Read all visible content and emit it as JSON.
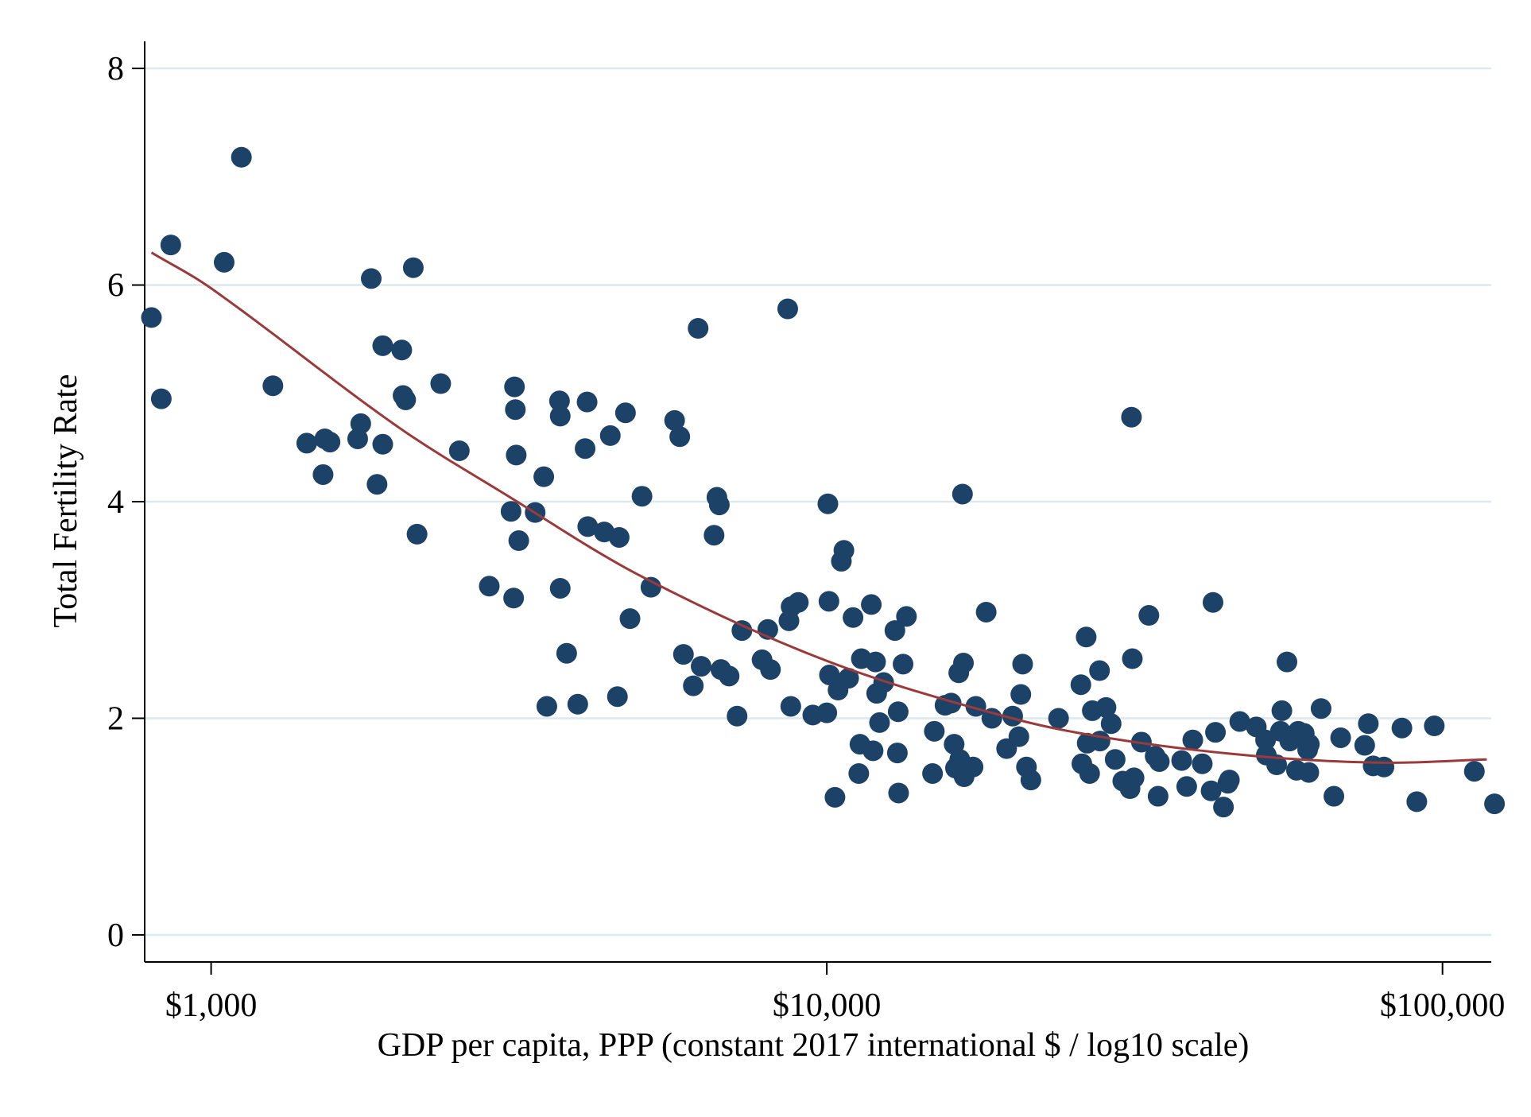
{
  "chart_data": {
    "type": "scatter",
    "xlabel": "GDP per capita, PPP (constant 2017 international $ / log10 scale)",
    "ylabel": "Total Fertility Rate",
    "x_scale": "log10",
    "xlim": [
      780,
      120000
    ],
    "ylim": [
      -0.25,
      8.25
    ],
    "x_ticks": [
      {
        "value": 1000,
        "label": "$1,000"
      },
      {
        "value": 10000,
        "label": "$10,000"
      },
      {
        "value": 100000,
        "label": "$100,000"
      }
    ],
    "y_ticks": [
      {
        "value": 0,
        "label": "0"
      },
      {
        "value": 2,
        "label": "2"
      },
      {
        "value": 4,
        "label": "4"
      },
      {
        "value": 6,
        "label": "6"
      },
      {
        "value": 8,
        "label": "8"
      }
    ],
    "grid": "horizontal",
    "colors": {
      "points": "#1d4268",
      "fit_line": "#9b3a3a",
      "grid": "#dce9ee",
      "axis": "#000000"
    },
    "series": [
      {
        "type": "scatter",
        "points": [
          [
            800,
            5.7
          ],
          [
            830,
            4.95
          ],
          [
            860,
            6.37
          ],
          [
            1050,
            6.21
          ],
          [
            1120,
            7.18
          ],
          [
            1260,
            5.07
          ],
          [
            1430,
            4.54
          ],
          [
            1530,
            4.58
          ],
          [
            1520,
            4.25
          ],
          [
            1560,
            4.55
          ],
          [
            1730,
            4.58
          ],
          [
            1750,
            4.72
          ],
          [
            1820,
            6.06
          ],
          [
            1860,
            4.16
          ],
          [
            1900,
            5.44
          ],
          [
            1900,
            4.53
          ],
          [
            2040,
            5.4
          ],
          [
            2050,
            4.98
          ],
          [
            2070,
            4.94
          ],
          [
            2130,
            6.16
          ],
          [
            2160,
            3.7
          ],
          [
            2360,
            5.09
          ],
          [
            2530,
            4.47
          ],
          [
            2830,
            3.22
          ],
          [
            3070,
            3.91
          ],
          [
            3100,
            3.11
          ],
          [
            3110,
            5.06
          ],
          [
            3120,
            4.85
          ],
          [
            3130,
            4.43
          ],
          [
            3160,
            3.64
          ],
          [
            3360,
            3.9
          ],
          [
            3470,
            4.23
          ],
          [
            3510,
            2.11
          ],
          [
            3680,
            4.93
          ],
          [
            3690,
            4.79
          ],
          [
            3690,
            3.2
          ],
          [
            3780,
            2.6
          ],
          [
            3940,
            2.13
          ],
          [
            4050,
            4.49
          ],
          [
            4080,
            4.92
          ],
          [
            4090,
            3.77
          ],
          [
            4350,
            3.72
          ],
          [
            4450,
            4.61
          ],
          [
            4600,
            3.67
          ],
          [
            4570,
            2.2
          ],
          [
            4710,
            4.82
          ],
          [
            4790,
            2.92
          ],
          [
            5010,
            4.05
          ],
          [
            5180,
            3.21
          ],
          [
            5660,
            4.75
          ],
          [
            5770,
            4.6
          ],
          [
            5850,
            2.59
          ],
          [
            6070,
            2.3
          ],
          [
            6180,
            5.6
          ],
          [
            6250,
            2.48
          ],
          [
            6560,
            3.69
          ],
          [
            6630,
            4.04
          ],
          [
            6690,
            3.97
          ],
          [
            6730,
            2.45
          ],
          [
            6940,
            2.39
          ],
          [
            7150,
            2.02
          ],
          [
            7280,
            2.81
          ],
          [
            7850,
            2.54
          ],
          [
            8020,
            2.82
          ],
          [
            8100,
            2.45
          ],
          [
            8640,
            5.78
          ],
          [
            8680,
            2.9
          ],
          [
            8750,
            3.03
          ],
          [
            8740,
            2.11
          ],
          [
            8990,
            3.07
          ],
          [
            9490,
            2.03
          ],
          [
            10000,
            2.05
          ],
          [
            10040,
            3.98
          ],
          [
            10080,
            3.08
          ],
          [
            10100,
            2.4
          ],
          [
            10310,
            1.27
          ],
          [
            10430,
            2.26
          ],
          [
            10560,
            3.45
          ],
          [
            10660,
            3.55
          ],
          [
            10850,
            2.37
          ],
          [
            11030,
            2.93
          ],
          [
            11270,
            1.49
          ],
          [
            11320,
            1.76
          ],
          [
            11380,
            2.55
          ],
          [
            11810,
            3.05
          ],
          [
            11890,
            1.7
          ],
          [
            12000,
            2.52
          ],
          [
            12050,
            2.23
          ],
          [
            12180,
            1.96
          ],
          [
            12370,
            2.33
          ],
          [
            12900,
            2.81
          ],
          [
            13020,
            1.68
          ],
          [
            13060,
            2.06
          ],
          [
            13080,
            1.31
          ],
          [
            13300,
            2.5
          ],
          [
            13470,
            2.94
          ],
          [
            14850,
            1.49
          ],
          [
            14950,
            1.88
          ],
          [
            15560,
            2.12
          ],
          [
            15920,
            2.14
          ],
          [
            16100,
            1.76
          ],
          [
            16180,
            1.54
          ],
          [
            16380,
            2.42
          ],
          [
            16440,
            1.62
          ],
          [
            16670,
            2.51
          ],
          [
            16610,
            4.07
          ],
          [
            16710,
            1.46
          ],
          [
            17280,
            1.55
          ],
          [
            17460,
            2.11
          ],
          [
            18150,
            2.98
          ],
          [
            18540,
            2.0
          ],
          [
            19590,
            1.72
          ],
          [
            20040,
            2.02
          ],
          [
            20510,
            1.83
          ],
          [
            20660,
            2.22
          ],
          [
            20800,
            2.5
          ],
          [
            21100,
            1.55
          ],
          [
            21450,
            1.43
          ],
          [
            23790,
            2.0
          ],
          [
            25860,
            2.31
          ],
          [
            25960,
            1.58
          ],
          [
            26380,
            2.75
          ],
          [
            26480,
            1.77
          ],
          [
            26720,
            1.49
          ],
          [
            26990,
            2.07
          ],
          [
            27730,
            2.44
          ],
          [
            27780,
            1.79
          ],
          [
            28410,
            2.1
          ],
          [
            28960,
            1.95
          ],
          [
            29400,
            1.62
          ],
          [
            30250,
            1.42
          ],
          [
            31080,
            1.35
          ],
          [
            31250,
            4.78
          ],
          [
            31350,
            2.55
          ],
          [
            31550,
            1.45
          ],
          [
            32430,
            1.78
          ],
          [
            33350,
            2.95
          ],
          [
            34140,
            1.65
          ],
          [
            34520,
            1.28
          ],
          [
            34680,
            1.6
          ],
          [
            37700,
            1.61
          ],
          [
            38420,
            1.37
          ],
          [
            39300,
            1.8
          ],
          [
            40720,
            1.58
          ],
          [
            42090,
            1.33
          ],
          [
            42390,
            3.07
          ],
          [
            42780,
            1.87
          ],
          [
            44080,
            1.18
          ],
          [
            45070,
            1.43
          ],
          [
            44810,
            1.4
          ],
          [
            46850,
            1.97
          ],
          [
            49840,
            1.92
          ],
          [
            51600,
            1.8
          ],
          [
            51740,
            1.66
          ],
          [
            53790,
            1.57
          ],
          [
            54540,
            1.88
          ],
          [
            54840,
            2.07
          ],
          [
            55900,
            2.52
          ],
          [
            56480,
            1.79
          ],
          [
            57230,
            1.84
          ],
          [
            58300,
            1.88
          ],
          [
            57920,
            1.52
          ],
          [
            59630,
            1.86
          ],
          [
            60390,
            1.71
          ],
          [
            60780,
            1.76
          ],
          [
            60650,
            1.5
          ],
          [
            63500,
            2.09
          ],
          [
            66620,
            1.28
          ],
          [
            68330,
            1.82
          ],
          [
            74750,
            1.75
          ],
          [
            75770,
            1.95
          ],
          [
            77160,
            1.56
          ],
          [
            80340,
            1.55
          ],
          [
            85920,
            1.91
          ],
          [
            90840,
            1.23
          ],
          [
            96970,
            1.93
          ],
          [
            112660,
            1.51
          ],
          [
            121470,
            1.21
          ]
        ]
      },
      {
        "type": "quadratic-fit",
        "x_range": [
          800,
          118000
        ],
        "values": [
          [
            800,
            6.3
          ],
          [
            1000,
            5.97
          ],
          [
            2000,
            4.7
          ],
          [
            3000,
            4.07
          ],
          [
            5000,
            3.31
          ],
          [
            10000,
            2.53
          ],
          [
            20000,
            2.0
          ],
          [
            30000,
            1.8
          ],
          [
            50000,
            1.65
          ],
          [
            80000,
            1.59
          ],
          [
            118000,
            1.62
          ]
        ]
      }
    ]
  }
}
